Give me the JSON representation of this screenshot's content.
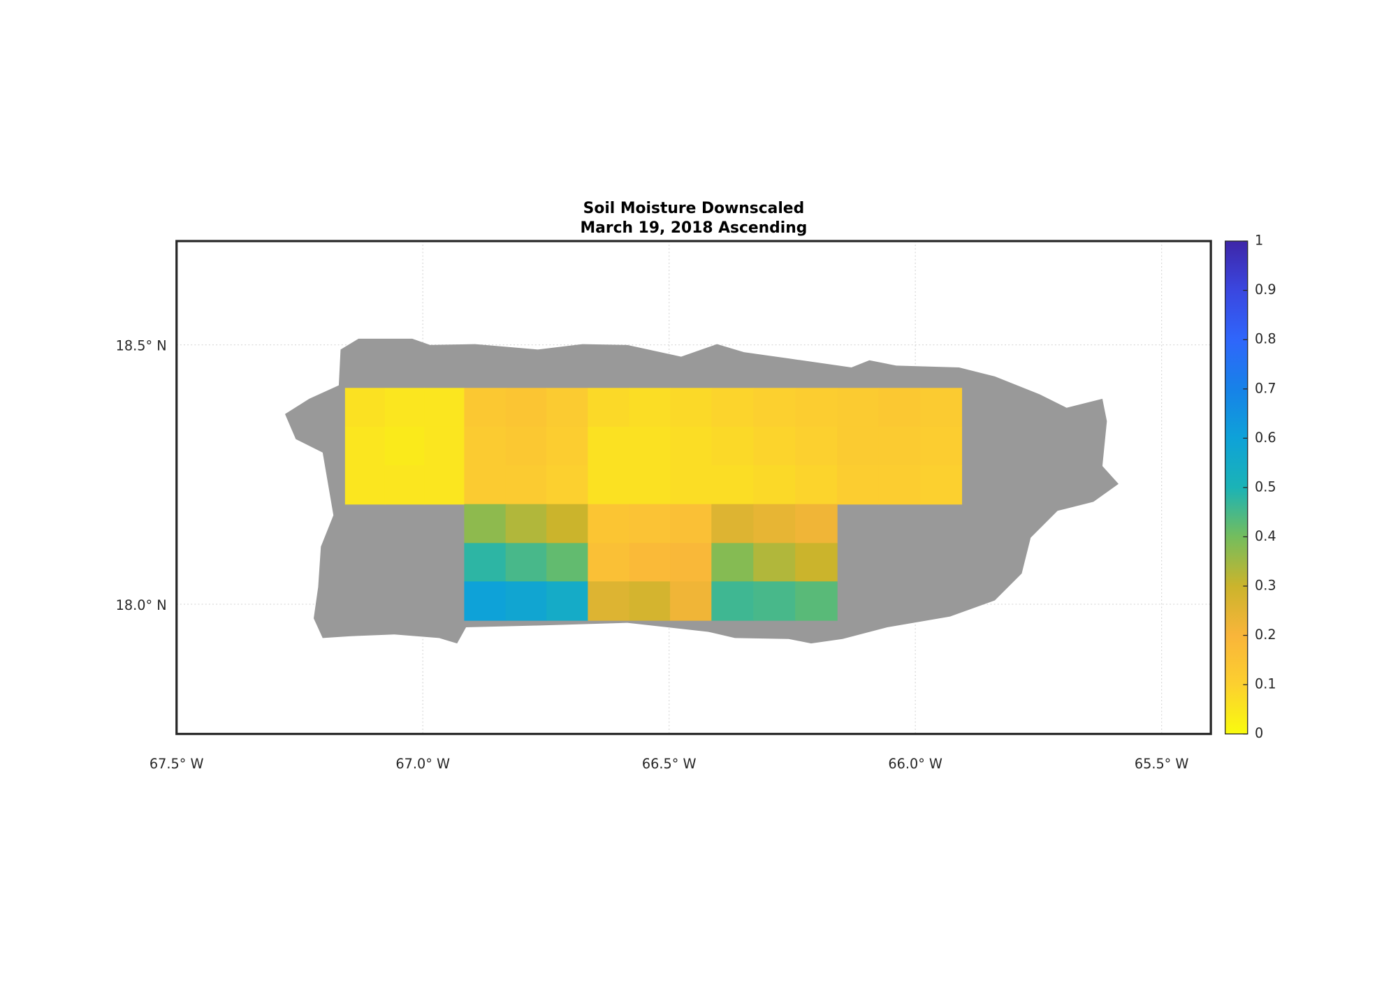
{
  "chart_data": {
    "type": "heatmap",
    "title": "Soil Moisture Downscaled",
    "subtitle": "March 19, 2018 Ascending",
    "xlim": [
      -67.5,
      -65.4
    ],
    "ylim": [
      17.75,
      18.7
    ],
    "xticks": [
      {
        "value": -67.5,
        "label": "67.5° W"
      },
      {
        "value": -67.0,
        "label": "67.0° W"
      },
      {
        "value": -66.5,
        "label": "66.5° W"
      },
      {
        "value": -66.0,
        "label": "66.0° W"
      },
      {
        "value": -65.5,
        "label": "65.5° W"
      }
    ],
    "yticks": [
      {
        "value": 18.0,
        "label": "18.0° N"
      },
      {
        "value": 18.5,
        "label": "18.5° N"
      }
    ],
    "grid": true,
    "x_edges": [
      -67.158,
      -67.077,
      -66.997,
      -66.916,
      -66.832,
      -66.749,
      -66.665,
      -66.581,
      -66.498,
      -66.414,
      -66.329,
      -66.244,
      -66.159,
      -66.075,
      -65.99,
      -65.906
    ],
    "y_edges": [
      18.417,
      18.342,
      18.268,
      18.193,
      18.118,
      18.044,
      17.969
    ],
    "values": [
      [
        0.06,
        0.05,
        0.05,
        0.13,
        0.14,
        0.12,
        0.08,
        0.07,
        0.08,
        0.09,
        0.1,
        0.11,
        0.12,
        0.13,
        0.12
      ],
      [
        0.05,
        0.04,
        0.05,
        0.12,
        0.13,
        0.11,
        0.06,
        0.06,
        0.07,
        0.08,
        0.09,
        0.1,
        0.12,
        0.12,
        0.11
      ],
      [
        0.05,
        0.05,
        0.05,
        0.12,
        0.12,
        0.1,
        0.06,
        0.06,
        0.07,
        0.07,
        0.08,
        0.09,
        0.11,
        0.11,
        0.1
      ],
      [
        null,
        null,
        null,
        0.37,
        0.33,
        0.3,
        0.14,
        0.15,
        0.16,
        0.26,
        0.24,
        0.22,
        null,
        null,
        null
      ],
      [
        null,
        null,
        null,
        0.48,
        0.45,
        0.42,
        0.16,
        0.18,
        0.19,
        0.38,
        0.33,
        0.3,
        null,
        null,
        null
      ],
      [
        null,
        null,
        null,
        0.6,
        0.58,
        0.55,
        0.26,
        0.28,
        0.22,
        0.46,
        0.45,
        0.43,
        null,
        null,
        null
      ]
    ],
    "colormap": [
      "#f9fb0e",
      "#fcd02f",
      "#f9b53a",
      "#cbb42c",
      "#74bd5d",
      "#1bb3b6",
      "#0ea2d8",
      "#1782e8",
      "#2f66fb",
      "#3a47e0",
      "#3e26a8"
    ],
    "colorbar": {
      "lim": [
        0,
        1
      ],
      "ticks": [
        0,
        0.1,
        0.2,
        0.3,
        0.4,
        0.5,
        0.6,
        0.7,
        0.8,
        0.9,
        1
      ]
    },
    "land_color": "#999999"
  }
}
